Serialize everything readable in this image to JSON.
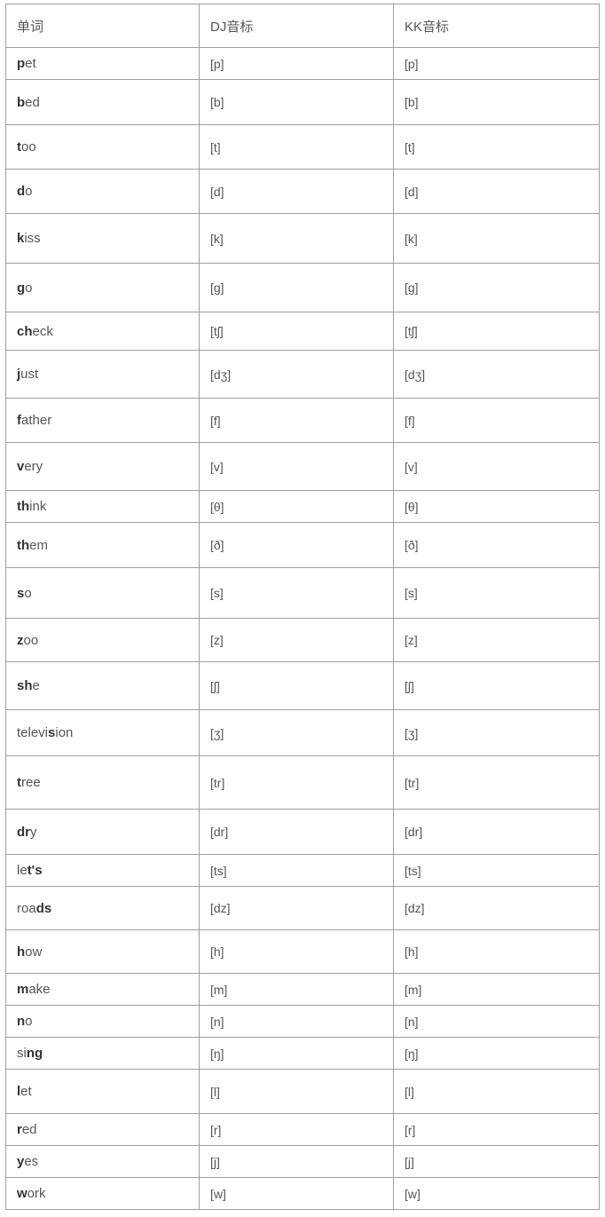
{
  "table": {
    "headers": [
      "单词",
      "DJ音标",
      "KK音标"
    ],
    "rows": [
      {
        "pre": "",
        "bold": "p",
        "post": "et",
        "dj": "[p]",
        "kk": "[p]"
      },
      {
        "pre": "",
        "bold": "b",
        "post": "ed",
        "dj": "[b]",
        "kk": "[b]"
      },
      {
        "pre": "",
        "bold": "t",
        "post": "oo",
        "dj": "[t]",
        "kk": "[t]"
      },
      {
        "pre": "",
        "bold": "d",
        "post": "o",
        "dj": "[d]",
        "kk": "[d]"
      },
      {
        "pre": "",
        "bold": "k",
        "post": "iss",
        "dj": "[k]",
        "kk": "[k]"
      },
      {
        "pre": "",
        "bold": "g",
        "post": "o",
        "dj": "[g]",
        "kk": "[g]"
      },
      {
        "pre": "",
        "bold": "ch",
        "post": "eck",
        "dj": "[tʃ]",
        "kk": "[tʃ]"
      },
      {
        "pre": "",
        "bold": "j",
        "post": "ust",
        "dj": "[dʒ]",
        "kk": "[dʒ]"
      },
      {
        "pre": "",
        "bold": "f",
        "post": "ather",
        "dj": "[f]",
        "kk": "[f]"
      },
      {
        "pre": "",
        "bold": "v",
        "post": "ery",
        "dj": "[v]",
        "kk": "[v]"
      },
      {
        "pre": "",
        "bold": "th",
        "post": "ink",
        "dj": "[θ]",
        "kk": "[θ]"
      },
      {
        "pre": "",
        "bold": "th",
        "post": "em",
        "dj": "[ð]",
        "kk": "[ð]"
      },
      {
        "pre": "",
        "bold": "s",
        "post": "o",
        "dj": "[s]",
        "kk": "[s]"
      },
      {
        "pre": "",
        "bold": "z",
        "post": "oo",
        "dj": "[z]",
        "kk": "[z]"
      },
      {
        "pre": "",
        "bold": "sh",
        "post": "e",
        "dj": "[ʃ]",
        "kk": "[ʃ]"
      },
      {
        "pre": "televi",
        "bold": "s",
        "post": "ion",
        "dj": "[ʒ]",
        "kk": "[ʒ]"
      },
      {
        "pre": "",
        "bold": "t",
        "post": "ree",
        "dj": "[tr]",
        "kk": "[tr]"
      },
      {
        "pre": "",
        "bold": "dr",
        "post": "y",
        "dj": "[dr]",
        "kk": "[dr]"
      },
      {
        "pre": "le",
        "bold": "t's",
        "post": "",
        "dj": "[ts]",
        "kk": "[ts]"
      },
      {
        "pre": "roa",
        "bold": "ds",
        "post": "",
        "dj": "[dz]",
        "kk": "[dz]"
      },
      {
        "pre": "",
        "bold": "h",
        "post": "ow",
        "dj": "[h]",
        "kk": "[h]"
      },
      {
        "pre": "",
        "bold": "m",
        "post": "ake",
        "dj": "[m]",
        "kk": "[m]"
      },
      {
        "pre": "",
        "bold": "n",
        "post": "o",
        "dj": "[n]",
        "kk": "[n]"
      },
      {
        "pre": "si",
        "bold": "ng",
        "post": "",
        "dj": "[ŋ]",
        "kk": "[ŋ]"
      },
      {
        "pre": "",
        "bold": "l",
        "post": "et",
        "dj": "[l]",
        "kk": "[l]"
      },
      {
        "pre": "",
        "bold": "r",
        "post": "ed",
        "dj": "[r]",
        "kk": "[r]"
      },
      {
        "pre": "",
        "bold": "y",
        "post": "es",
        "dj": "[j]",
        "kk": "[j]"
      },
      {
        "pre": "",
        "bold": "w",
        "post": "ork",
        "dj": "[w]",
        "kk": "[w]"
      }
    ]
  }
}
